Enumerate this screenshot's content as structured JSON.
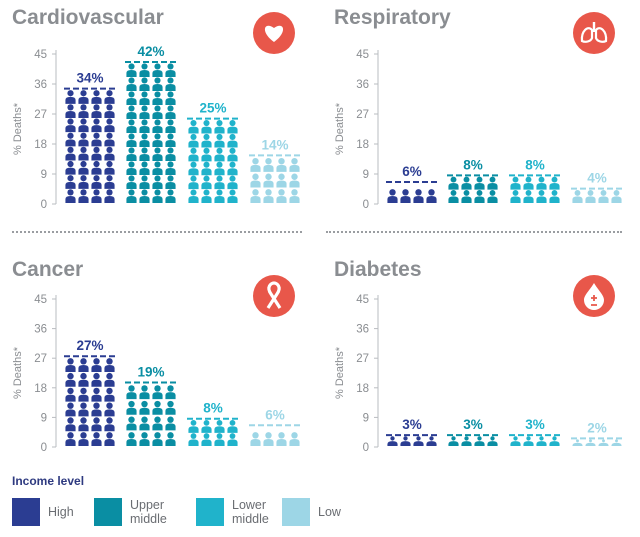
{
  "colors": {
    "high": "#2b3d92",
    "upper_middle": "#0a8ea3",
    "lower_middle": "#20b3cb",
    "low": "#9dd6e6",
    "icon_circle": "#e8574a",
    "text_gray": "#8a8d91"
  },
  "chart_data": [
    {
      "type": "bar",
      "title": "Cardiovascular",
      "icon": "heart-icon",
      "ylabel": "% Deaths*",
      "ylim": [
        0,
        45
      ],
      "yticks": [
        "0",
        "9",
        "18",
        "27",
        "36",
        "45"
      ],
      "categories": [
        "High",
        "Upper middle",
        "Lower middle",
        "Low"
      ],
      "values": [
        34,
        42,
        25,
        14
      ],
      "labels": [
        "34%",
        "42%",
        "25%",
        "14%"
      ]
    },
    {
      "type": "bar",
      "title": "Respiratory",
      "icon": "lungs-icon",
      "ylabel": "% Deaths*",
      "ylim": [
        0,
        45
      ],
      "yticks": [
        "0",
        "9",
        "18",
        "27",
        "36",
        "45"
      ],
      "categories": [
        "High",
        "Upper middle",
        "Lower middle",
        "Low"
      ],
      "values": [
        6,
        8,
        8,
        4
      ],
      "labels": [
        "6%",
        "8%",
        "8%",
        "4%"
      ]
    },
    {
      "type": "bar",
      "title": "Cancer",
      "icon": "ribbon-icon",
      "ylabel": "% Deaths*",
      "ylim": [
        0,
        45
      ],
      "yticks": [
        "0",
        "9",
        "18",
        "27",
        "36",
        "45"
      ],
      "categories": [
        "High",
        "Upper middle",
        "Lower middle",
        "Low"
      ],
      "values": [
        27,
        19,
        8,
        6
      ],
      "labels": [
        "27%",
        "19%",
        "8%",
        "6%"
      ]
    },
    {
      "type": "bar",
      "title": "Diabetes",
      "icon": "blood-drop-icon",
      "ylabel": "% Deaths*",
      "ylim": [
        0,
        45
      ],
      "yticks": [
        "0",
        "9",
        "18",
        "27",
        "36",
        "45"
      ],
      "categories": [
        "High",
        "Upper middle",
        "Lower middle",
        "Low"
      ],
      "values": [
        3,
        3,
        3,
        2
      ],
      "labels": [
        "3%",
        "3%",
        "3%",
        "2%"
      ]
    }
  ],
  "legend": {
    "title": "Income level",
    "items": [
      {
        "label": "High",
        "color_key": "high"
      },
      {
        "label": "Upper\nmiddle",
        "color_key": "upper_middle"
      },
      {
        "label": "Lower\nmiddle",
        "color_key": "lower_middle"
      },
      {
        "label": "Low",
        "color_key": "low"
      }
    ]
  }
}
